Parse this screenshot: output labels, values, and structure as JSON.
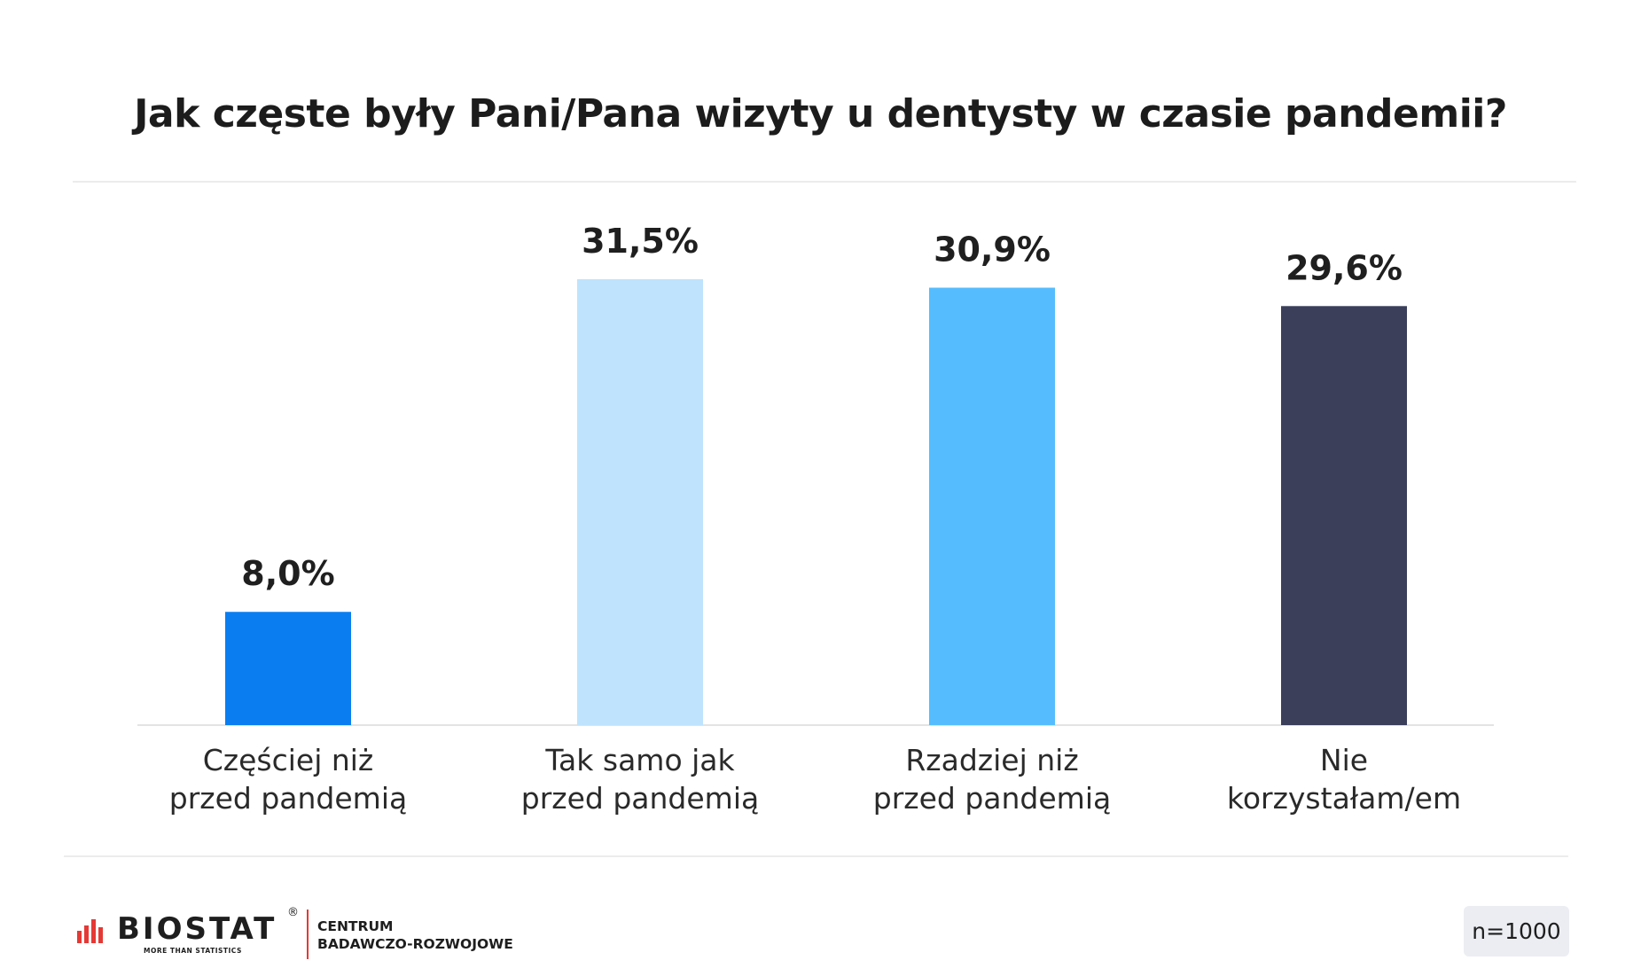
{
  "header": {
    "title": "Jak częste były Pani/Pana wizyty u dentysty w czasie pandemii?"
  },
  "chart_data": {
    "type": "bar",
    "title": "Jak częste były Pani/Pana wizyty u dentysty w czasie pandemii?",
    "xlabel": "",
    "ylabel": "",
    "ylim": [
      0,
      35
    ],
    "grid": false,
    "legend": "none",
    "categories": [
      [
        "Częściej niż",
        "przed pandemią"
      ],
      [
        "Tak samo jak",
        "przed pandemią"
      ],
      [
        "Rzadziej niż",
        "przed pandemią"
      ],
      [
        "Nie",
        "korzystałam/em"
      ]
    ],
    "values": [
      8.0,
      31.5,
      30.9,
      29.6
    ],
    "value_labels": [
      "8,0%",
      "31,5%",
      "30,9%",
      "29,6%"
    ],
    "colors": [
      "#0a7ef0",
      "#bfe3fd",
      "#55bdfd",
      "#3b3f5a"
    ]
  },
  "footer": {
    "logo": {
      "name": "BIOSTAT",
      "registered": "®",
      "tagline": "MORE THAN STATISTICS",
      "line1": "CENTRUM",
      "line2": "BADAWCZO-ROZWOJOWE"
    },
    "sample": "n=1000"
  },
  "colors": {
    "accent_red": "#e53935",
    "rule": "#ececec",
    "badge_bg": "#ecedf2",
    "text": "#1f1f1f"
  }
}
